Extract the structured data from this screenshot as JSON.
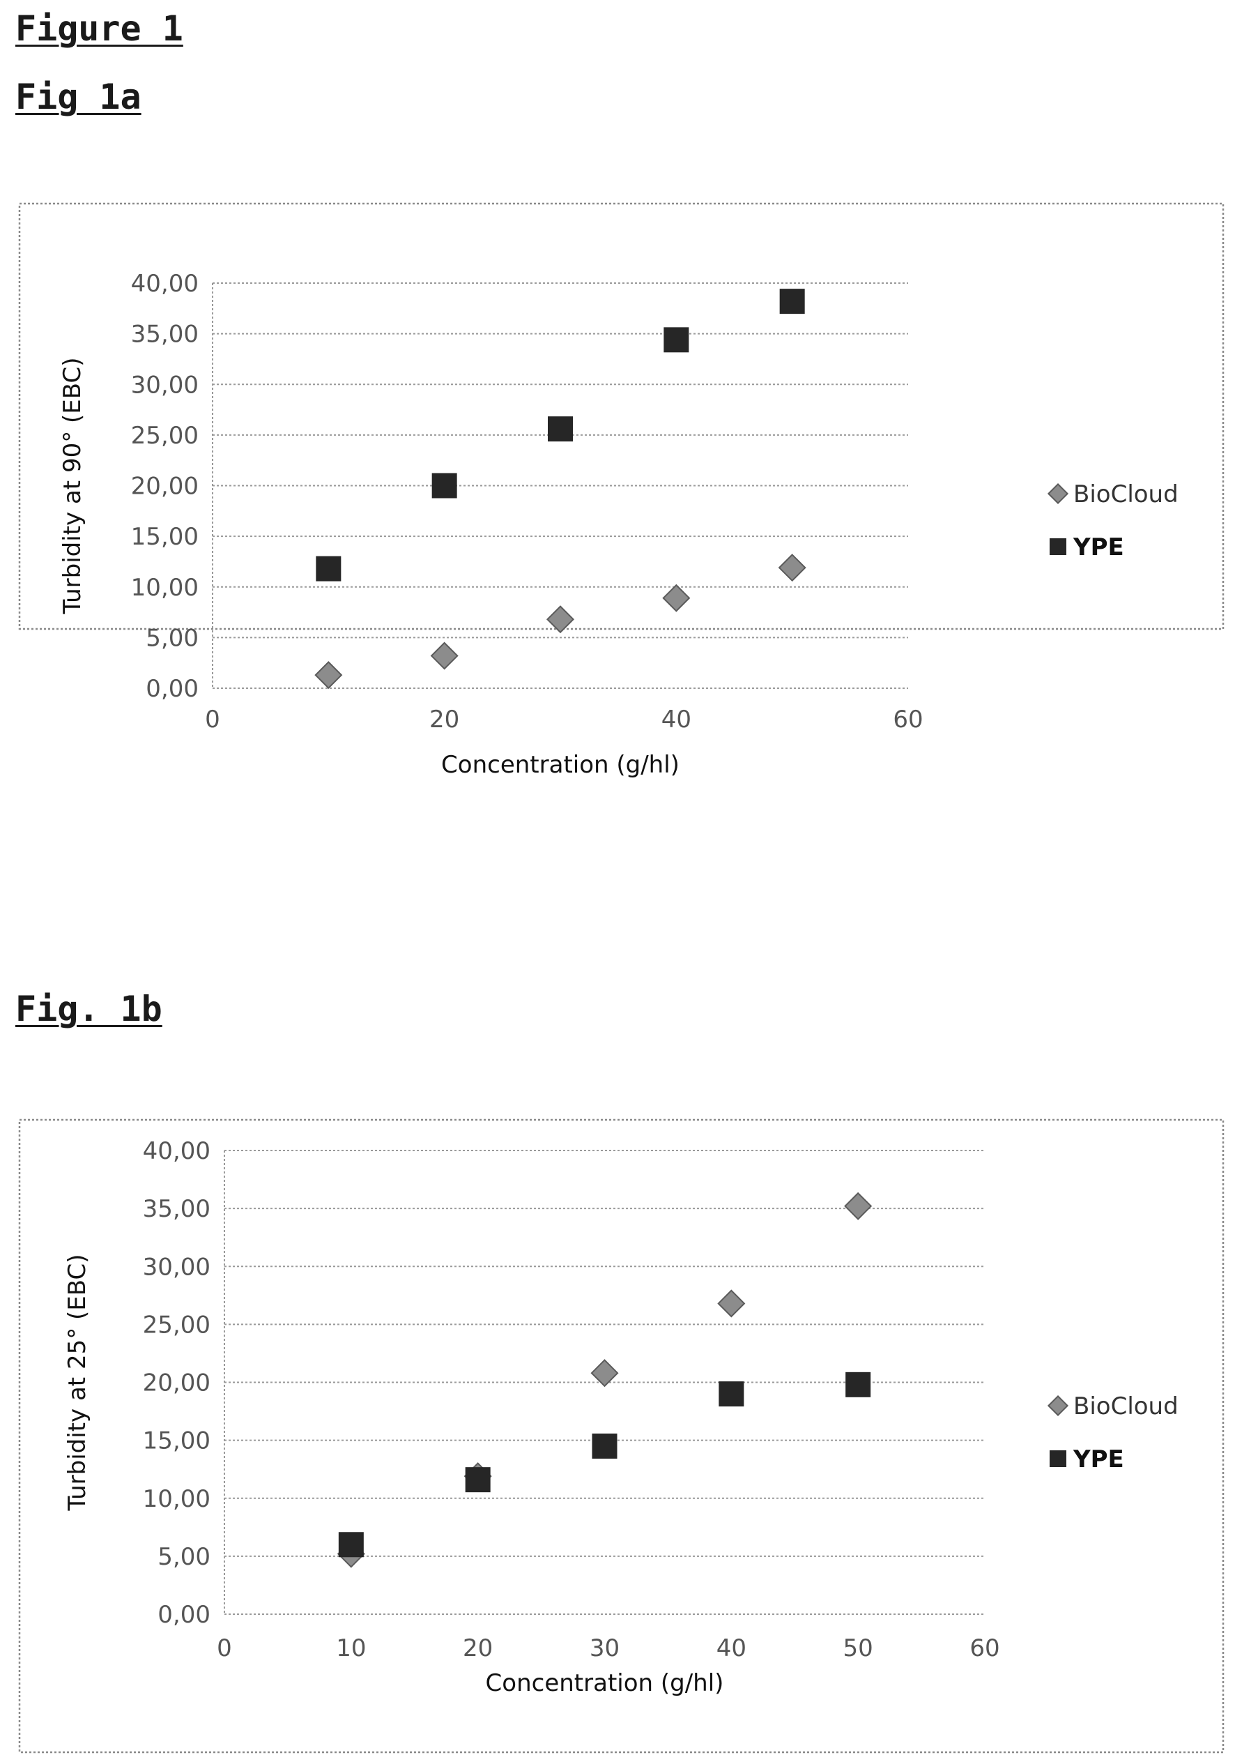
{
  "headings": {
    "figure": "Figure 1",
    "fig_a": "Fig 1a",
    "fig_b": "Fig. 1b"
  },
  "colors": {
    "biocloud": "#8c8c8c",
    "ype": "#262626",
    "grid": "#9a9a9a",
    "frame": "#8a8a8a"
  },
  "chart_data": [
    {
      "type": "scatter",
      "title": "",
      "xlabel": "Concentration (g/hl)",
      "ylabel": "Turbidity at 90° (EBC)",
      "xlim": [
        0,
        60
      ],
      "ylim": [
        0,
        40
      ],
      "x_ticks": [
        "0",
        "20",
        "40",
        "60"
      ],
      "y_ticks": [
        "0,00",
        "5,00",
        "10,00",
        "15,00",
        "20,00",
        "25,00",
        "30,00",
        "35,00",
        "40,00"
      ],
      "grid": true,
      "legend_position": "right",
      "series": [
        {
          "name": "BioCloud",
          "marker": "diamond",
          "x": [
            10,
            20,
            30,
            40,
            50
          ],
          "y": [
            1.3,
            3.2,
            6.8,
            8.9,
            11.9
          ]
        },
        {
          "name": "YPE",
          "marker": "square",
          "x": [
            10,
            20,
            30,
            40,
            50
          ],
          "y": [
            11.8,
            20.0,
            25.6,
            34.4,
            38.2
          ]
        }
      ]
    },
    {
      "type": "scatter",
      "title": "",
      "xlabel": "Concentration (g/hl)",
      "ylabel": "Turbidity at 25° (EBC)",
      "xlim": [
        0,
        60
      ],
      "ylim": [
        0,
        40
      ],
      "x_ticks": [
        "0",
        "10",
        "20",
        "30",
        "40",
        "50",
        "60"
      ],
      "y_ticks": [
        "0,00",
        "5,00",
        "10,00",
        "15,00",
        "20,00",
        "25,00",
        "30,00",
        "35,00",
        "40,00"
      ],
      "grid": true,
      "legend_position": "right",
      "series": [
        {
          "name": "BioCloud",
          "marker": "diamond",
          "x": [
            10,
            20,
            30,
            40,
            50
          ],
          "y": [
            5.2,
            11.9,
            20.8,
            26.8,
            35.2
          ]
        },
        {
          "name": "YPE",
          "marker": "square",
          "x": [
            10,
            20,
            30,
            40,
            50
          ],
          "y": [
            6.0,
            11.6,
            14.5,
            19.0,
            19.8
          ]
        }
      ]
    }
  ]
}
